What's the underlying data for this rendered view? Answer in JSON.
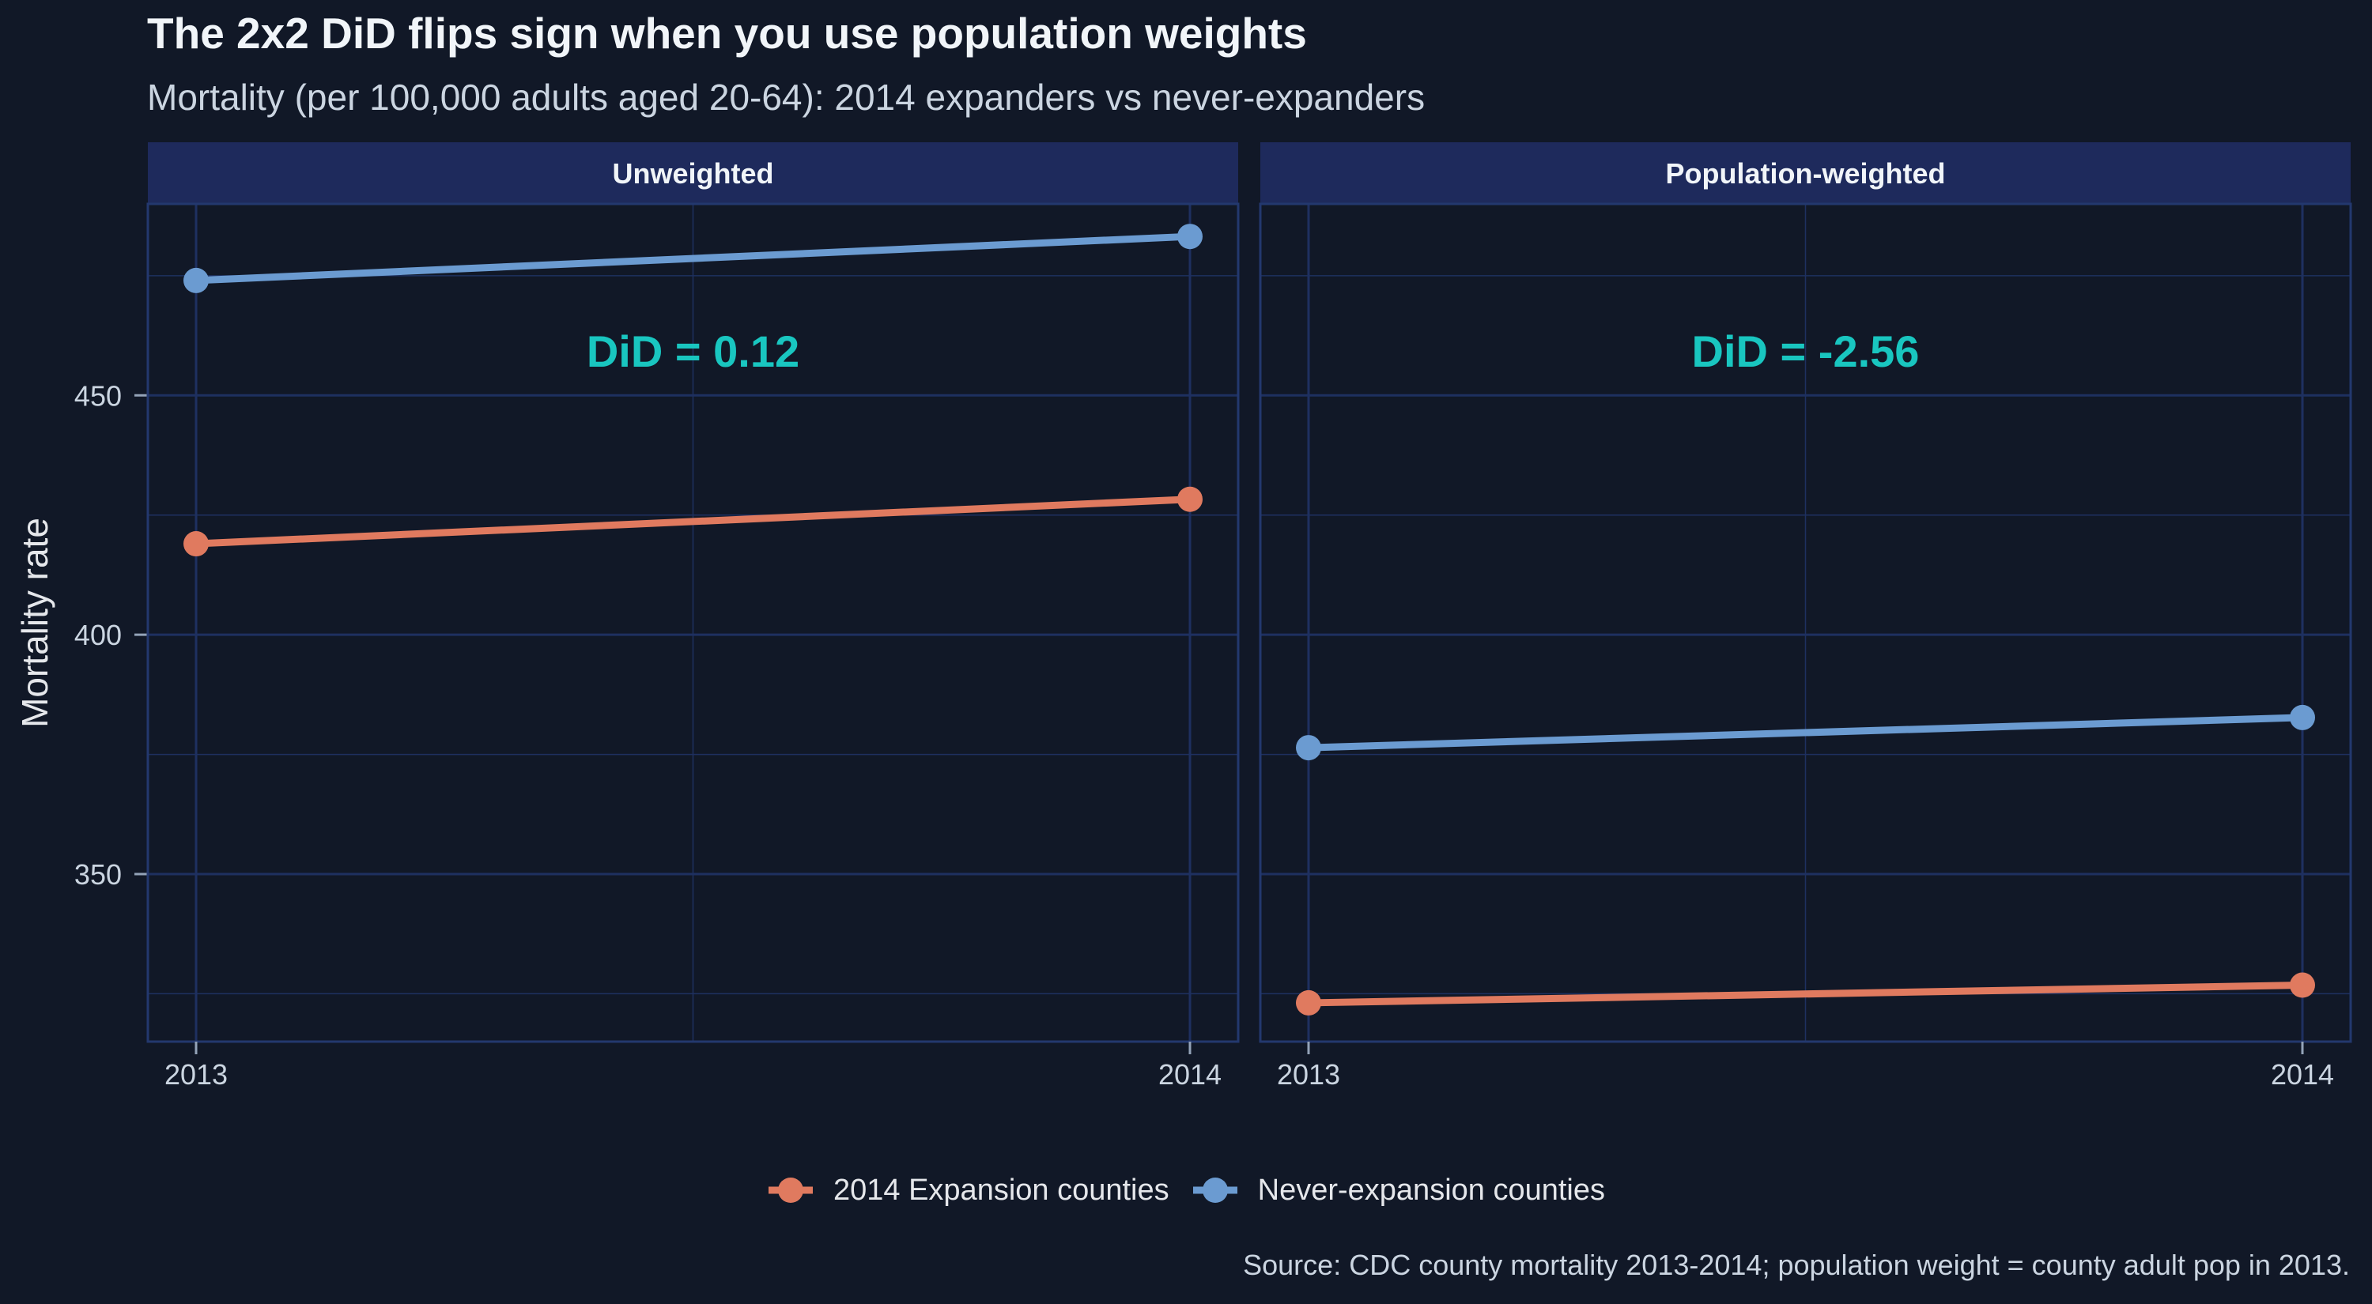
{
  "title": "The 2x2 DiD flips sign when you use population weights",
  "subtitle": "Mortality (per 100,000 adults aged 20-64): 2014 expanders vs never-expanders",
  "caption": "Source: CDC county mortality 2013-2014; population weight = county adult pop in 2013.",
  "colors": {
    "background": "#111827",
    "panel_strip": "#1e2a5c",
    "grid": "#1e3060",
    "expansion": "#e07a5f",
    "never_expansion": "#6b9bd1",
    "annotation": "#19c6c0"
  },
  "legend": {
    "items": [
      {
        "label": "2014 Expansion counties",
        "color": "#e07a5f"
      },
      {
        "label": "Never-expansion counties",
        "color": "#6b9bd1"
      }
    ]
  },
  "chart_data": {
    "type": "line",
    "ylabel": "Mortality rate",
    "xlabel": "",
    "x": [
      "2013",
      "2014"
    ],
    "ylim": [
      315,
      490
    ],
    "yticks": [
      350,
      400,
      450
    ],
    "grid": true,
    "legend_position": "bottom",
    "facets": [
      {
        "strip": "Unweighted",
        "annotation": "DiD = 0.12",
        "series": [
          {
            "name": "2014 Expansion counties",
            "values": [
              419.0,
              428.3
            ]
          },
          {
            "name": "Never-expansion counties",
            "values": [
              474.0,
              483.2
            ]
          }
        ]
      },
      {
        "strip": "Population-weighted",
        "annotation": "DiD = -2.56",
        "series": [
          {
            "name": "2014 Expansion counties",
            "values": [
              323.1,
              326.8
            ]
          },
          {
            "name": "Never-expansion counties",
            "values": [
              376.4,
              382.7
            ]
          }
        ]
      }
    ]
  }
}
